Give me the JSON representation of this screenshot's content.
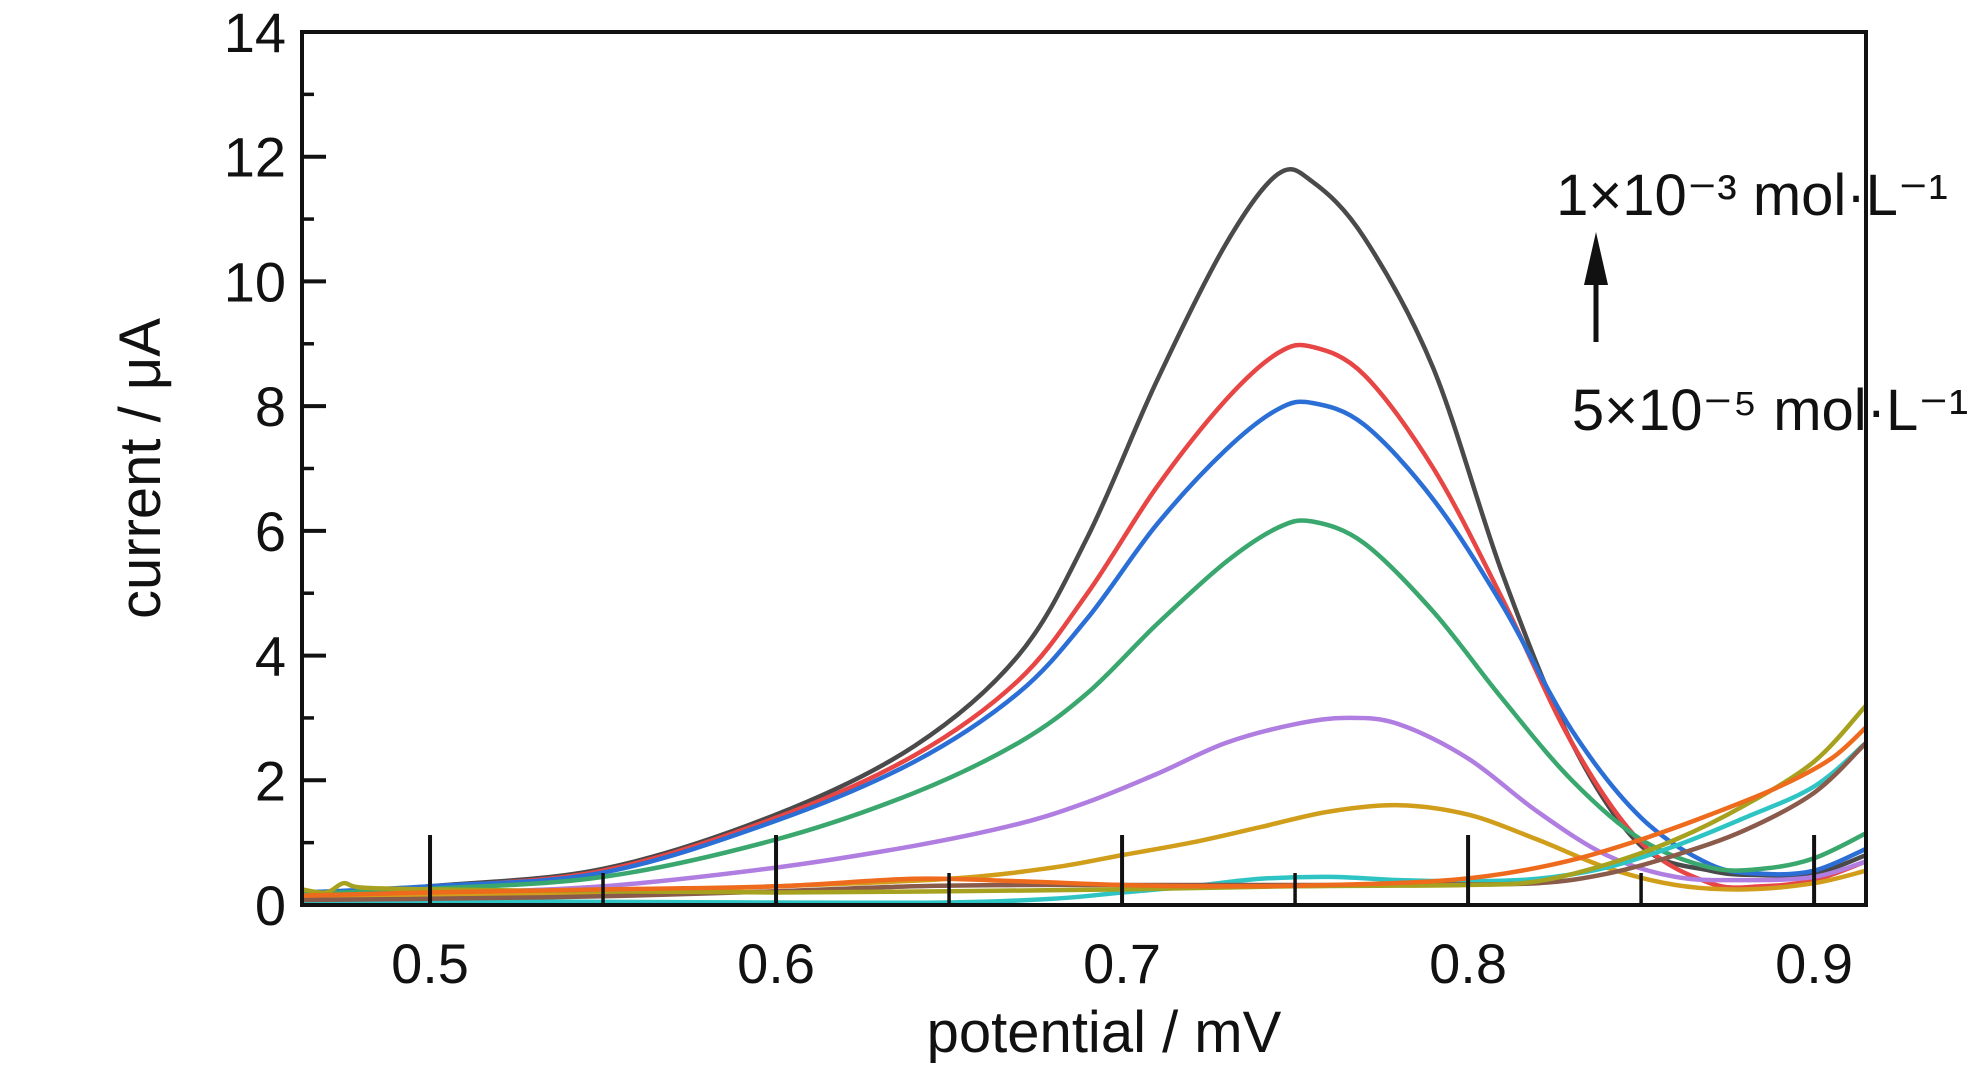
{
  "chart_data": {
    "type": "line",
    "title": "",
    "xlabel": "potential / mV",
    "ylabel": "current / μA",
    "xlim": [
      0.463,
      0.915
    ],
    "ylim": [
      0,
      14
    ],
    "x_ticks": [
      0.5,
      0.6,
      0.7,
      0.8,
      0.9
    ],
    "x_tick_labels": [
      "0.5",
      "0.6",
      "0.7",
      "0.8",
      "0.9"
    ],
    "y_ticks": [
      0,
      2,
      4,
      6,
      8,
      10,
      12,
      14
    ],
    "y_tick_labels": [
      "0",
      "2",
      "4",
      "6",
      "8",
      "10",
      "12",
      "14"
    ],
    "grid": false,
    "legend": "none",
    "annotations": {
      "top": "1×10⁻³ mol·L⁻¹",
      "bottom": "5×10⁻⁵ mol·L⁻¹",
      "arrow": "up"
    },
    "series": [
      {
        "color": "#4a4a4a",
        "points": [
          [
            0.463,
            0.15
          ],
          [
            0.5,
            0.3
          ],
          [
            0.55,
            0.58
          ],
          [
            0.6,
            1.45
          ],
          [
            0.64,
            2.55
          ],
          [
            0.67,
            4.0
          ],
          [
            0.69,
            5.9
          ],
          [
            0.71,
            8.4
          ],
          [
            0.73,
            10.6
          ],
          [
            0.745,
            11.72
          ],
          [
            0.755,
            11.6
          ],
          [
            0.77,
            10.7
          ],
          [
            0.79,
            8.6
          ],
          [
            0.81,
            5.3
          ],
          [
            0.83,
            2.6
          ],
          [
            0.85,
            0.95
          ],
          [
            0.87,
            0.55
          ],
          [
            0.885,
            0.48
          ],
          [
            0.9,
            0.5
          ],
          [
            0.915,
            0.8
          ]
        ]
      },
      {
        "color": "#e84545",
        "points": [
          [
            0.463,
            0.12
          ],
          [
            0.5,
            0.28
          ],
          [
            0.55,
            0.55
          ],
          [
            0.6,
            1.4
          ],
          [
            0.64,
            2.4
          ],
          [
            0.67,
            3.6
          ],
          [
            0.69,
            5.0
          ],
          [
            0.71,
            6.7
          ],
          [
            0.73,
            8.1
          ],
          [
            0.745,
            8.85
          ],
          [
            0.755,
            8.95
          ],
          [
            0.77,
            8.5
          ],
          [
            0.79,
            7.0
          ],
          [
            0.81,
            4.9
          ],
          [
            0.83,
            2.6
          ],
          [
            0.85,
            1.0
          ],
          [
            0.87,
            0.35
          ],
          [
            0.885,
            0.3
          ],
          [
            0.9,
            0.4
          ],
          [
            0.915,
            0.7
          ]
        ]
      },
      {
        "color": "#2b6fd6",
        "points": [
          [
            0.463,
            0.2
          ],
          [
            0.5,
            0.3
          ],
          [
            0.55,
            0.52
          ],
          [
            0.6,
            1.35
          ],
          [
            0.64,
            2.3
          ],
          [
            0.67,
            3.4
          ],
          [
            0.69,
            4.6
          ],
          [
            0.71,
            6.1
          ],
          [
            0.73,
            7.3
          ],
          [
            0.745,
            7.95
          ],
          [
            0.755,
            8.05
          ],
          [
            0.77,
            7.7
          ],
          [
            0.79,
            6.5
          ],
          [
            0.81,
            4.8
          ],
          [
            0.83,
            2.8
          ],
          [
            0.85,
            1.4
          ],
          [
            0.87,
            0.65
          ],
          [
            0.885,
            0.5
          ],
          [
            0.9,
            0.55
          ],
          [
            0.915,
            0.9
          ]
        ]
      },
      {
        "color": "#3aa86e",
        "points": [
          [
            0.463,
            0.18
          ],
          [
            0.5,
            0.26
          ],
          [
            0.55,
            0.45
          ],
          [
            0.6,
            1.05
          ],
          [
            0.64,
            1.8
          ],
          [
            0.67,
            2.6
          ],
          [
            0.69,
            3.4
          ],
          [
            0.71,
            4.5
          ],
          [
            0.73,
            5.5
          ],
          [
            0.745,
            6.05
          ],
          [
            0.755,
            6.15
          ],
          [
            0.77,
            5.8
          ],
          [
            0.79,
            4.7
          ],
          [
            0.81,
            3.3
          ],
          [
            0.83,
            2.0
          ],
          [
            0.85,
            1.05
          ],
          [
            0.87,
            0.6
          ],
          [
            0.885,
            0.58
          ],
          [
            0.9,
            0.75
          ],
          [
            0.915,
            1.15
          ]
        ]
      },
      {
        "color": "#b07ee0",
        "points": [
          [
            0.463,
            0.12
          ],
          [
            0.5,
            0.18
          ],
          [
            0.55,
            0.3
          ],
          [
            0.6,
            0.6
          ],
          [
            0.64,
            0.95
          ],
          [
            0.67,
            1.3
          ],
          [
            0.69,
            1.65
          ],
          [
            0.71,
            2.1
          ],
          [
            0.73,
            2.6
          ],
          [
            0.75,
            2.9
          ],
          [
            0.765,
            3.0
          ],
          [
            0.78,
            2.9
          ],
          [
            0.8,
            2.35
          ],
          [
            0.82,
            1.5
          ],
          [
            0.84,
            0.8
          ],
          [
            0.86,
            0.45
          ],
          [
            0.88,
            0.4
          ],
          [
            0.9,
            0.45
          ],
          [
            0.915,
            0.7
          ]
        ]
      },
      {
        "color": "#d19e1b",
        "points": [
          [
            0.463,
            0.1
          ],
          [
            0.5,
            0.15
          ],
          [
            0.55,
            0.2
          ],
          [
            0.6,
            0.3
          ],
          [
            0.65,
            0.42
          ],
          [
            0.68,
            0.6
          ],
          [
            0.7,
            0.8
          ],
          [
            0.72,
            1.0
          ],
          [
            0.74,
            1.25
          ],
          [
            0.76,
            1.5
          ],
          [
            0.78,
            1.6
          ],
          [
            0.8,
            1.45
          ],
          [
            0.82,
            1.05
          ],
          [
            0.84,
            0.6
          ],
          [
            0.86,
            0.32
          ],
          [
            0.88,
            0.25
          ],
          [
            0.9,
            0.35
          ],
          [
            0.915,
            0.55
          ]
        ]
      },
      {
        "color": "#2fc4c4",
        "points": [
          [
            0.463,
            0.05
          ],
          [
            0.5,
            0.06
          ],
          [
            0.55,
            0.05
          ],
          [
            0.6,
            0.04
          ],
          [
            0.65,
            0.04
          ],
          [
            0.68,
            0.1
          ],
          [
            0.7,
            0.2
          ],
          [
            0.72,
            0.3
          ],
          [
            0.74,
            0.42
          ],
          [
            0.76,
            0.45
          ],
          [
            0.78,
            0.4
          ],
          [
            0.8,
            0.38
          ],
          [
            0.82,
            0.42
          ],
          [
            0.84,
            0.6
          ],
          [
            0.86,
            0.95
          ],
          [
            0.88,
            1.4
          ],
          [
            0.9,
            1.9
          ],
          [
            0.915,
            2.6
          ]
        ]
      },
      {
        "color": "#8a5a4a",
        "points": [
          [
            0.463,
            0.08
          ],
          [
            0.5,
            0.1
          ],
          [
            0.55,
            0.14
          ],
          [
            0.6,
            0.22
          ],
          [
            0.64,
            0.3
          ],
          [
            0.67,
            0.32
          ],
          [
            0.7,
            0.32
          ],
          [
            0.73,
            0.32
          ],
          [
            0.76,
            0.32
          ],
          [
            0.79,
            0.33
          ],
          [
            0.82,
            0.35
          ],
          [
            0.84,
            0.5
          ],
          [
            0.86,
            0.8
          ],
          [
            0.88,
            1.2
          ],
          [
            0.9,
            1.8
          ],
          [
            0.915,
            2.6
          ]
        ]
      },
      {
        "color": "#a6a11e",
        "points": [
          [
            0.463,
            0.25
          ],
          [
            0.47,
            0.2
          ],
          [
            0.475,
            0.35
          ],
          [
            0.48,
            0.28
          ],
          [
            0.5,
            0.25
          ],
          [
            0.55,
            0.22
          ],
          [
            0.6,
            0.2
          ],
          [
            0.65,
            0.22
          ],
          [
            0.7,
            0.25
          ],
          [
            0.75,
            0.3
          ],
          [
            0.8,
            0.32
          ],
          [
            0.82,
            0.38
          ],
          [
            0.84,
            0.65
          ],
          [
            0.86,
            1.05
          ],
          [
            0.88,
            1.6
          ],
          [
            0.9,
            2.3
          ],
          [
            0.915,
            3.2
          ]
        ]
      },
      {
        "color": "#ee6a1c",
        "points": [
          [
            0.463,
            0.15
          ],
          [
            0.5,
            0.2
          ],
          [
            0.55,
            0.25
          ],
          [
            0.6,
            0.3
          ],
          [
            0.64,
            0.42
          ],
          [
            0.67,
            0.38
          ],
          [
            0.7,
            0.32
          ],
          [
            0.73,
            0.3
          ],
          [
            0.76,
            0.32
          ],
          [
            0.79,
            0.38
          ],
          [
            0.81,
            0.5
          ],
          [
            0.83,
            0.72
          ],
          [
            0.85,
            1.05
          ],
          [
            0.87,
            1.45
          ],
          [
            0.89,
            1.9
          ],
          [
            0.905,
            2.35
          ],
          [
            0.915,
            2.85
          ]
        ]
      }
    ]
  }
}
